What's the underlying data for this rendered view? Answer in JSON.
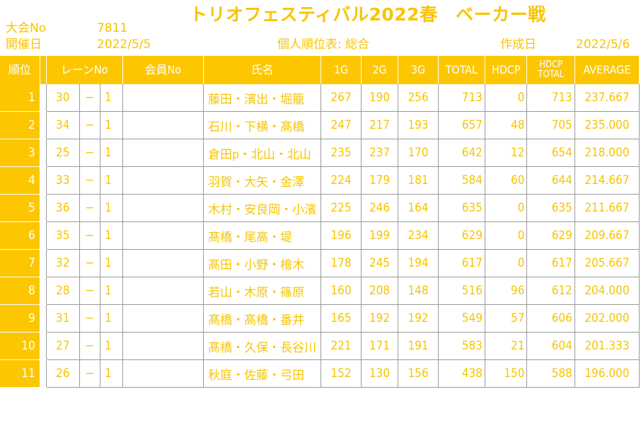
{
  "header": {
    "title": "トリオフェスティバル2022春　ベーカー戦",
    "tournament_no_label": "大会No",
    "tournament_no": "7811",
    "date_label": "開催日",
    "date": "2022/5/5",
    "subtitle": "個人順位表: 総合",
    "made_label": "作成日",
    "made_date": "2022/5/6"
  },
  "columns": {
    "rank": "順位",
    "lane": "レーンNo",
    "member": "会員No",
    "name": "氏名",
    "g1": "1G",
    "g2": "2G",
    "g3": "3G",
    "total": "TOTAL",
    "hdcp": "HDCP",
    "hdcp_total_1": "HDCP",
    "hdcp_total_2": "TOTAL",
    "average": "AVERAGE"
  },
  "rows": [
    {
      "rank": "1",
      "lane": "30",
      "dash": "−",
      "sub": "1",
      "member": "",
      "name": "藤田・濱出・堀籠",
      "g1": "267",
      "g2": "190",
      "g3": "256",
      "total": "713",
      "hdcp": "0",
      "hdcp_total": "713",
      "average": "237.667"
    },
    {
      "rank": "2",
      "lane": "34",
      "dash": "−",
      "sub": "1",
      "member": "",
      "name": "石川・下横・髙橋",
      "g1": "247",
      "g2": "217",
      "g3": "193",
      "total": "657",
      "hdcp": "48",
      "hdcp_total": "705",
      "average": "235.000"
    },
    {
      "rank": "3",
      "lane": "25",
      "dash": "−",
      "sub": "1",
      "member": "",
      "name": "倉田p・北山・北山",
      "g1": "235",
      "g2": "237",
      "g3": "170",
      "total": "642",
      "hdcp": "12",
      "hdcp_total": "654",
      "average": "218.000"
    },
    {
      "rank": "4",
      "lane": "33",
      "dash": "−",
      "sub": "1",
      "member": "",
      "name": "羽賀・大矢・金澤",
      "g1": "224",
      "g2": "179",
      "g3": "181",
      "total": "584",
      "hdcp": "60",
      "hdcp_total": "644",
      "average": "214.667"
    },
    {
      "rank": "5",
      "lane": "36",
      "dash": "−",
      "sub": "1",
      "member": "",
      "name": "木村・安良岡・小濱",
      "g1": "225",
      "g2": "246",
      "g3": "164",
      "total": "635",
      "hdcp": "0",
      "hdcp_total": "635",
      "average": "211.667"
    },
    {
      "rank": "6",
      "lane": "35",
      "dash": "−",
      "sub": "1",
      "member": "",
      "name": "髙橋・尾高・堤",
      "g1": "196",
      "g2": "199",
      "g3": "234",
      "total": "629",
      "hdcp": "0",
      "hdcp_total": "629",
      "average": "209.667"
    },
    {
      "rank": "7",
      "lane": "32",
      "dash": "−",
      "sub": "1",
      "member": "",
      "name": "髙田・小野・檜木",
      "g1": "178",
      "g2": "245",
      "g3": "194",
      "total": "617",
      "hdcp": "0",
      "hdcp_total": "617",
      "average": "205.667"
    },
    {
      "rank": "8",
      "lane": "28",
      "dash": "−",
      "sub": "1",
      "member": "",
      "name": "若山・木原・篠原",
      "g1": "160",
      "g2": "208",
      "g3": "148",
      "total": "516",
      "hdcp": "96",
      "hdcp_total": "612",
      "average": "204.000"
    },
    {
      "rank": "9",
      "lane": "31",
      "dash": "−",
      "sub": "1",
      "member": "",
      "name": "髙橋・髙橋・番井",
      "g1": "165",
      "g2": "192",
      "g3": "192",
      "total": "549",
      "hdcp": "57",
      "hdcp_total": "606",
      "average": "202.000"
    },
    {
      "rank": "10",
      "lane": "27",
      "dash": "−",
      "sub": "1",
      "member": "",
      "name": "髙橋・久保・長谷川",
      "g1": "221",
      "g2": "171",
      "g3": "191",
      "total": "583",
      "hdcp": "21",
      "hdcp_total": "604",
      "average": "201.333"
    },
    {
      "rank": "11",
      "lane": "26",
      "dash": "−",
      "sub": "1",
      "member": "",
      "name": "秋庭・佐藤・弓田",
      "g1": "152",
      "g2": "130",
      "g3": "156",
      "total": "438",
      "hdcp": "150",
      "hdcp_total": "588",
      "average": "196.000"
    }
  ]
}
